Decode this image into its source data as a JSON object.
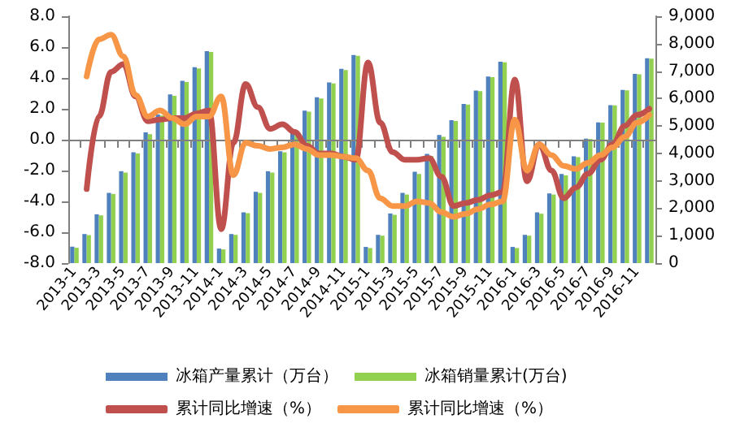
{
  "chart_data": {
    "type": "bar",
    "categories": [
      "2013-1",
      null,
      "2013-3",
      null,
      "2013-5",
      null,
      "2013-7",
      null,
      "2013-9",
      null,
      "2013-11",
      null,
      "2014-1",
      null,
      "2014-3",
      null,
      "2014-5",
      null,
      "2014-7",
      null,
      "2014-9",
      null,
      "2014-11",
      null,
      "2015-1",
      null,
      "2015-3",
      null,
      "2015-5",
      null,
      "2015-7",
      null,
      "2015-9",
      null,
      "2015-11",
      null,
      "2016-1",
      null,
      "2016-3",
      null,
      "2016-5",
      null,
      "2016-7",
      null,
      "2016-9",
      null,
      "2016-11",
      null
    ],
    "series": [
      {
        "name": "冰箱产量累计（万台）",
        "axis": "y2",
        "color": "#4f81bd",
        "values": [
          600,
          1060,
          1780,
          2560,
          3350,
          4040,
          4770,
          5420,
          6150,
          6650,
          7140,
          7730,
          530,
          1060,
          1850,
          2600,
          3350,
          4080,
          4770,
          5560,
          6050,
          6590,
          7080,
          7590,
          590,
          1030,
          1810,
          2560,
          3330,
          3980,
          4670,
          5210,
          5800,
          6290,
          6800,
          7340,
          590,
          1030,
          1850,
          2540,
          3250,
          3890,
          4540,
          5130,
          5760,
          6310,
          6900,
          7470
        ]
      },
      {
        "name": "冰箱销量累计(万台)",
        "axis": "y2",
        "color": "#92d050",
        "values": [
          560,
          1020,
          1740,
          2520,
          3300,
          4000,
          4700,
          5380,
          6100,
          6600,
          7100,
          7700,
          500,
          1030,
          1820,
          2560,
          3300,
          4040,
          4720,
          5520,
          6000,
          6550,
          7040,
          7560,
          550,
          1000,
          1760,
          2500,
          3250,
          3900,
          4600,
          5180,
          5780,
          6270,
          6780,
          7320,
          550,
          1000,
          1800,
          2500,
          3200,
          3860,
          4520,
          5120,
          5750,
          6300,
          6880,
          7450
        ]
      },
      {
        "name": "累计同比增速（%）",
        "type": "line",
        "color": "#c0504d",
        "values": [
          null,
          -3.2,
          1.5,
          4.4,
          4.9,
          2.8,
          1.2,
          1.3,
          1.4,
          1.4,
          1.7,
          1.9,
          -5.8,
          -0.2,
          3.6,
          2.1,
          0.7,
          1.0,
          0.5,
          -0.4,
          -0.9,
          -0.9,
          -1.1,
          -1.3,
          5.0,
          1.1,
          -0.8,
          -1.3,
          -1.3,
          -1.2,
          -2.4,
          -4.3,
          -4.1,
          -3.9,
          -3.6,
          -3.4,
          3.9,
          -2.7,
          -0.3,
          -2.0,
          -3.8,
          -3.1,
          -2.2,
          -1.3,
          -0.3,
          0.9,
          1.6,
          2.0
        ]
      },
      {
        "name": "累计同比增速（%）",
        "type": "line",
        "color": "#f79646",
        "values": [
          null,
          4.1,
          6.5,
          6.8,
          5.4,
          2.9,
          1.5,
          1.9,
          1.4,
          1.0,
          1.5,
          1.5,
          2.8,
          -2.3,
          -0.2,
          -0.4,
          -0.6,
          -0.5,
          -0.3,
          -0.6,
          -1.0,
          -1.0,
          -1.1,
          -1.2,
          -2.0,
          -3.8,
          -4.3,
          -4.3,
          -4.0,
          -4.1,
          -4.7,
          -5.0,
          -4.8,
          -4.5,
          -4.2,
          -4.0,
          1.3,
          -2.0,
          -0.3,
          -1.0,
          -1.7,
          -1.9,
          -1.5,
          -1.0,
          -0.5,
          0.2,
          1.1,
          1.6
        ]
      }
    ],
    "ylim": [
      -8,
      8
    ],
    "yticks": [
      {
        "value": -8,
        "label": "-8.0"
      },
      {
        "value": -6,
        "label": "-6.0"
      },
      {
        "value": -4,
        "label": "-4.0"
      },
      {
        "value": -2,
        "label": "-2.0"
      },
      {
        "value": 0,
        "label": "0.0"
      },
      {
        "value": 2,
        "label": "2.0"
      },
      {
        "value": 4,
        "label": "4.0"
      },
      {
        "value": 6,
        "label": "6.0"
      },
      {
        "value": 8,
        "label": "8.0"
      }
    ],
    "y2lim": [
      0,
      9000
    ],
    "y2ticks": [
      0,
      {
        "value": 1000,
        "label": "1,000"
      },
      {
        "value": 2000,
        "label": "2,000"
      },
      {
        "value": 3000,
        "label": "3,000"
      },
      {
        "value": 4000,
        "label": "4,000"
      },
      {
        "value": 5000,
        "label": "5,000"
      },
      {
        "value": 6000,
        "label": "6,000"
      },
      {
        "value": 7000,
        "label": "7,000"
      },
      {
        "value": 8000,
        "label": "8,000"
      },
      {
        "value": 9000,
        "label": "9,000"
      }
    ],
    "ref_lines": [
      {
        "axis": "y",
        "value": 0,
        "color": "#808080"
      }
    ],
    "grid": false,
    "legend": "bottom",
    "marker": "none",
    "line_style": "solid"
  }
}
